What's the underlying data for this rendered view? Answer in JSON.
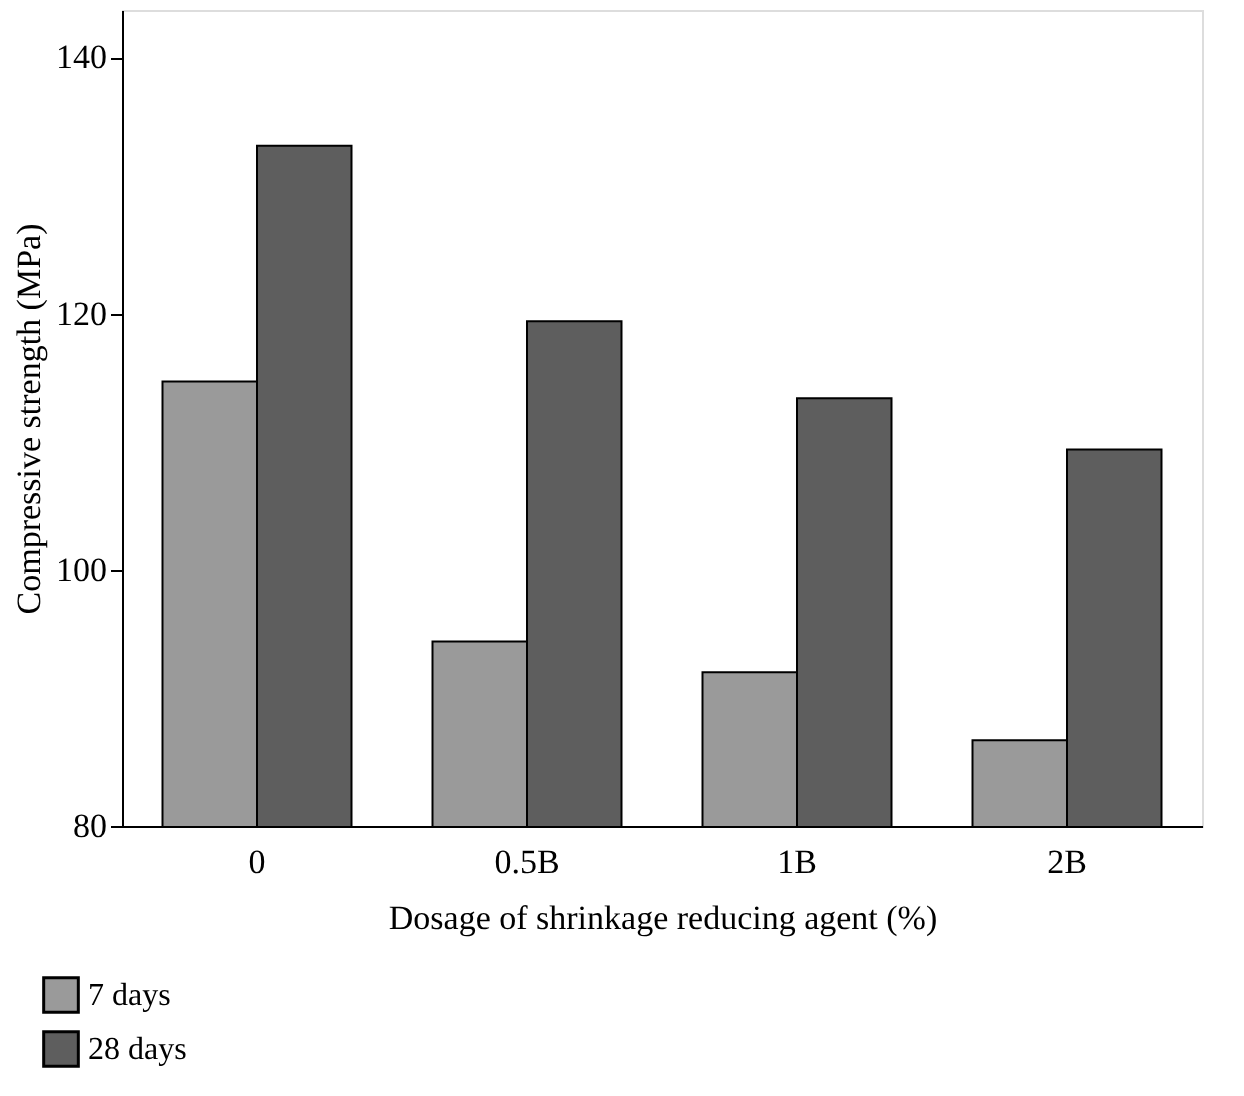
{
  "chart_data": {
    "type": "bar",
    "xlabel": "Dosage of shrinkage reducing agent (%)",
    "ylabel": "Compressive strength (MPa)",
    "categories": [
      "0",
      "0.5B",
      "1B",
      "2B"
    ],
    "series": [
      {
        "name": "7 days",
        "color": "#9a9a9a",
        "values": [
          114.7,
          94.4,
          92.0,
          86.7
        ]
      },
      {
        "name": "28 days",
        "color": "#5e5e5e",
        "values": [
          133.1,
          119.4,
          113.4,
          109.4
        ]
      }
    ],
    "ylim": [
      80,
      143.7
    ],
    "yticks": [
      80,
      100,
      120,
      140
    ],
    "grid": false,
    "legend": "bottom left"
  }
}
